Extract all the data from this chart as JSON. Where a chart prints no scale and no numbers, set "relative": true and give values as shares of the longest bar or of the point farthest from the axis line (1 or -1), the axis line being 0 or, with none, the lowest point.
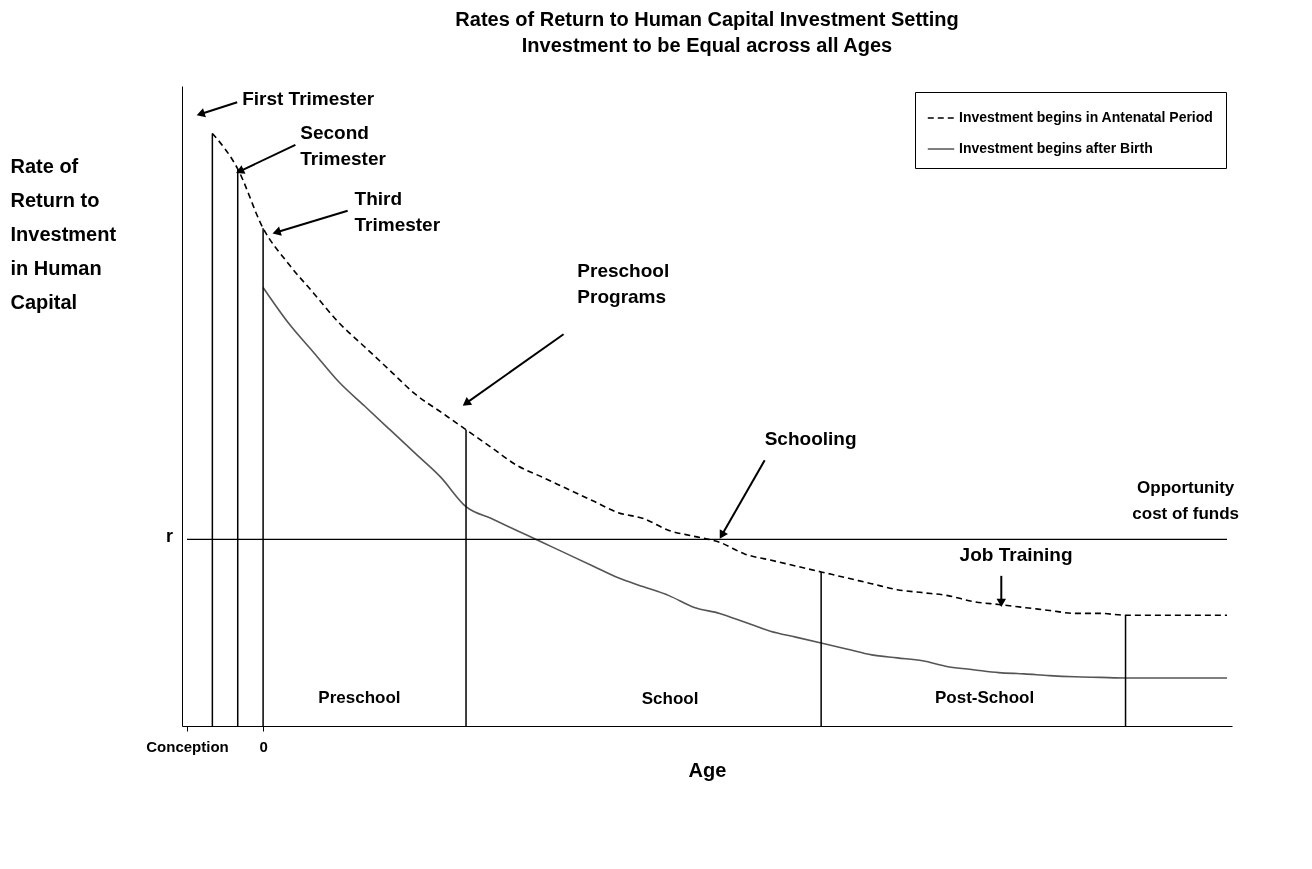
{
  "chart_data": {
    "type": "line",
    "title": "Rates of Return to Human Capital Investment Setting Investment to be Equal across all Ages",
    "xlabel": "Age",
    "ylabel": "Rate of Return to Investment in Human Capital",
    "relative": true,
    "legend": "top right",
    "categories": [
      "Conception",
      null,
      null,
      "0",
      null,
      null,
      null,
      null,
      null,
      null,
      null,
      null,
      null,
      null,
      null,
      null,
      null,
      null,
      null,
      null,
      null,
      null,
      null,
      null,
      null,
      null,
      null,
      null,
      null,
      null,
      null,
      null,
      null,
      null,
      null,
      null,
      null,
      null,
      null,
      null,
      null,
      null
    ],
    "series": [
      {
        "name": "Investment begins in Antenatal Period",
        "color": "#000000",
        "line_style": "dashed",
        "values": [
          null,
          1.0,
          0.94,
          0.84,
          0.78,
          0.73,
          0.68,
          0.64,
          0.6,
          0.56,
          0.53,
          0.5,
          0.47,
          0.44,
          0.42,
          0.4,
          0.38,
          0.36,
          0.35,
          0.33,
          0.32,
          0.31,
          0.29,
          0.28,
          0.27,
          0.26,
          0.25,
          0.24,
          0.23,
          0.225,
          0.22,
          0.21,
          0.205,
          0.2,
          0.195,
          0.19,
          0.19,
          0.187,
          0.187,
          0.187,
          0.187,
          0.187
        ]
      },
      {
        "name": "Investment begins after Birth",
        "color": "#555555",
        "line_style": "solid",
        "values": [
          null,
          null,
          null,
          0.74,
          0.68,
          0.63,
          0.58,
          0.54,
          0.5,
          0.46,
          0.42,
          0.37,
          0.35,
          0.33,
          0.31,
          0.29,
          0.27,
          0.25,
          0.235,
          0.22,
          0.2,
          0.19,
          0.175,
          0.16,
          0.15,
          0.14,
          0.13,
          0.12,
          0.115,
          0.11,
          0.1,
          0.095,
          0.09,
          0.088,
          0.085,
          0.083,
          0.082,
          0.081,
          0.081,
          0.081,
          0.081,
          0.081
        ]
      },
      {
        "type": "bar",
        "color": "#000000",
        "values": [
          null,
          1.0,
          0.94,
          0.84,
          null,
          null,
          null,
          null,
          null,
          null,
          null,
          0.5,
          null,
          null,
          null,
          null,
          null,
          null,
          null,
          null,
          null,
          null,
          null,
          null,
          null,
          0.26,
          null,
          null,
          null,
          null,
          null,
          null,
          null,
          null,
          null,
          null,
          null,
          0.187,
          null,
          null,
          null,
          null
        ]
      }
    ],
    "ref_lines": [
      {
        "axis": "y",
        "value": 0.315,
        "label": "r",
        "color": "#000000"
      }
    ],
    "annotations": [
      "First Trimester",
      "Second Trimester",
      "Third Trimester",
      "Preschool Programs",
      "Schooling",
      "Job Training",
      "Opportunity cost of funds",
      "Preschool",
      "School",
      "Post-School"
    ]
  }
}
